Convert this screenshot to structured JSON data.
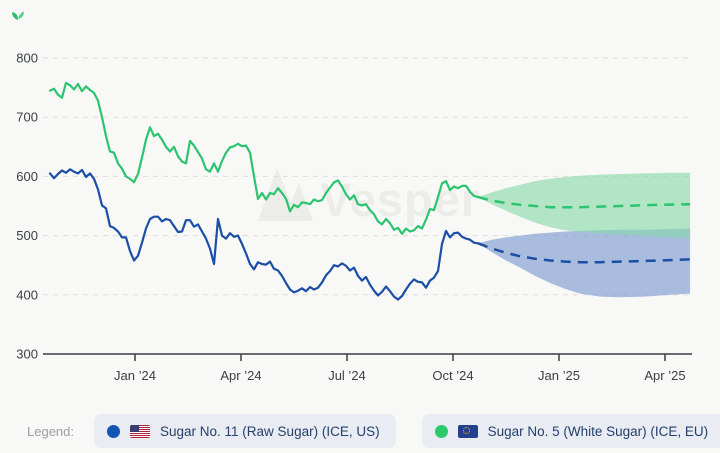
{
  "logo": {
    "icon": "sprout-leaf-icon",
    "color": "#2dbd6e"
  },
  "watermark": {
    "text": "Vesper",
    "icon": "vesper-mountain-glyph"
  },
  "legend": {
    "label": "Legend:",
    "items": [
      {
        "text": "Sugar No. 11 (Raw Sugar) (ICE, US)",
        "dot_color": "#1355b2",
        "flag": "us-flag-icon"
      },
      {
        "text": "Sugar No. 5 (White Sugar) (ICE, EU)",
        "dot_color": "#2dc96d",
        "flag": "eu-flag-icon"
      }
    ]
  },
  "chart_data": {
    "type": "line",
    "title": "",
    "xlabel": "",
    "ylabel": "",
    "ylim": [
      300,
      800
    ],
    "y_ticks": [
      800,
      700,
      600,
      500,
      400,
      300
    ],
    "grid": "horizontal-dashed",
    "legend_position": "bottom",
    "x_unit": "months since Oct 2023",
    "x_ticks": [
      {
        "label": "Jan ’24",
        "m": 3
      },
      {
        "label": "Apr ’24",
        "m": 6
      },
      {
        "label": "Jul ’24",
        "m": 9
      },
      {
        "label": "Oct ’24",
        "m": 12
      },
      {
        "label": "Jan ’25",
        "m": 15
      },
      {
        "label": "Apr ’25",
        "m": 18
      }
    ],
    "series": [
      {
        "name": "Sugar No. 11 (Raw Sugar) (ICE, US)",
        "color": "#1b4ea6",
        "band_color": "rgba(117,148,207,0.6)",
        "history": {
          "x_start": 0.594,
          "x_step": 0.1132,
          "values": [
            605,
            597,
            604,
            610,
            606,
            612,
            608,
            605,
            611,
            599,
            605,
            596,
            578,
            551,
            546,
            516,
            513,
            507,
            497,
            497,
            474,
            458,
            466,
            488,
            512,
            528,
            532,
            532,
            524,
            528,
            526,
            516,
            506,
            507,
            526,
            526,
            515,
            519,
            507,
            495,
            478,
            452,
            528,
            500,
            495,
            504,
            498,
            500,
            486,
            470,
            452,
            443,
            455,
            452,
            451,
            456,
            444,
            441,
            432,
            420,
            409,
            404,
            407,
            411,
            406,
            413,
            409,
            412,
            421,
            433,
            440,
            450,
            448,
            453,
            449,
            441,
            446,
            432,
            424,
            430,
            417,
            407,
            399,
            405,
            414,
            406,
            397,
            392,
            398,
            409,
            419,
            426,
            422,
            421,
            412,
            424,
            429,
            440,
            486,
            508,
            497,
            504,
            505,
            498,
            495,
            493,
            488,
            487
          ]
        },
        "forecast": [
          [
            12.71,
            487
          ],
          [
            13.1,
            478
          ],
          [
            13.5,
            471
          ],
          [
            13.9,
            465
          ],
          [
            14.32,
            461
          ],
          [
            14.75,
            458
          ],
          [
            15.17,
            456
          ],
          [
            15.6,
            455
          ],
          [
            16.16,
            455
          ],
          [
            16.73,
            456
          ],
          [
            17.29,
            457
          ],
          [
            17.86,
            458
          ],
          [
            18.71,
            460
          ]
        ],
        "band": [
          [
            12.71,
            487,
            487
          ],
          [
            13.1,
            493,
            472
          ],
          [
            13.5,
            497,
            458
          ],
          [
            13.9,
            500,
            446
          ],
          [
            14.32,
            503,
            432
          ],
          [
            14.75,
            505,
            420
          ],
          [
            15.17,
            507,
            410
          ],
          [
            15.6,
            508,
            402
          ],
          [
            16.16,
            509,
            397
          ],
          [
            16.73,
            510,
            396
          ],
          [
            17.43,
            510,
            397
          ],
          [
            18.14,
            511,
            400
          ],
          [
            18.71,
            512,
            402
          ]
        ]
      },
      {
        "name": "Sugar No. 5 (White Sugar) (ICE, EU)",
        "color": "#2bc470",
        "band_color": "rgba(132,217,167,0.6)",
        "history": {
          "x_start": 0.594,
          "x_step": 0.1132,
          "values": [
            745,
            748,
            738,
            733,
            758,
            754,
            747,
            756,
            744,
            752,
            746,
            741,
            728,
            700,
            668,
            642,
            640,
            622,
            613,
            600,
            596,
            590,
            604,
            632,
            662,
            683,
            668,
            672,
            662,
            650,
            642,
            650,
            634,
            625,
            622,
            660,
            652,
            641,
            630,
            612,
            608,
            622,
            608,
            626,
            640,
            649,
            651,
            655,
            651,
            652,
            640,
            600,
            562,
            572,
            561,
            572,
            570,
            580,
            572,
            562,
            541,
            552,
            548,
            556,
            555,
            553,
            561,
            558,
            560,
            572,
            581,
            590,
            593,
            583,
            570,
            561,
            568,
            553,
            551,
            553,
            543,
            536,
            524,
            519,
            528,
            521,
            510,
            513,
            503,
            512,
            507,
            509,
            516,
            512,
            527,
            545,
            543,
            565,
            588,
            592,
            577,
            583,
            580,
            584,
            584,
            574,
            567,
            565
          ]
        },
        "forecast": [
          [
            12.71,
            565
          ],
          [
            13.1,
            559
          ],
          [
            13.5,
            555
          ],
          [
            13.9,
            552
          ],
          [
            14.32,
            550
          ],
          [
            14.75,
            548
          ],
          [
            15.17,
            548
          ],
          [
            15.6,
            548
          ],
          [
            16.16,
            549
          ],
          [
            16.73,
            550
          ],
          [
            17.29,
            551
          ],
          [
            17.86,
            552
          ],
          [
            18.71,
            553
          ]
        ],
        "band": [
          [
            12.71,
            565,
            565
          ],
          [
            13.1,
            573,
            553
          ],
          [
            13.5,
            580,
            542
          ],
          [
            13.9,
            586,
            532
          ],
          [
            14.32,
            592,
            522
          ],
          [
            14.75,
            596,
            514
          ],
          [
            15.17,
            599,
            509
          ],
          [
            15.6,
            601,
            506
          ],
          [
            16.16,
            603,
            504
          ],
          [
            16.73,
            604,
            502
          ],
          [
            17.43,
            605,
            500
          ],
          [
            18.14,
            606,
            497
          ],
          [
            18.71,
            606,
            495
          ]
        ]
      }
    ]
  },
  "colors": {
    "background": "#f8f8f6",
    "gridline": "#dcdcda",
    "axis_text": "#3b4046",
    "legend_chip_bg": "#e9ecf3",
    "legend_text": "#24406b",
    "legend_label": "#9b9ea3",
    "watermark": "#ecece9"
  }
}
